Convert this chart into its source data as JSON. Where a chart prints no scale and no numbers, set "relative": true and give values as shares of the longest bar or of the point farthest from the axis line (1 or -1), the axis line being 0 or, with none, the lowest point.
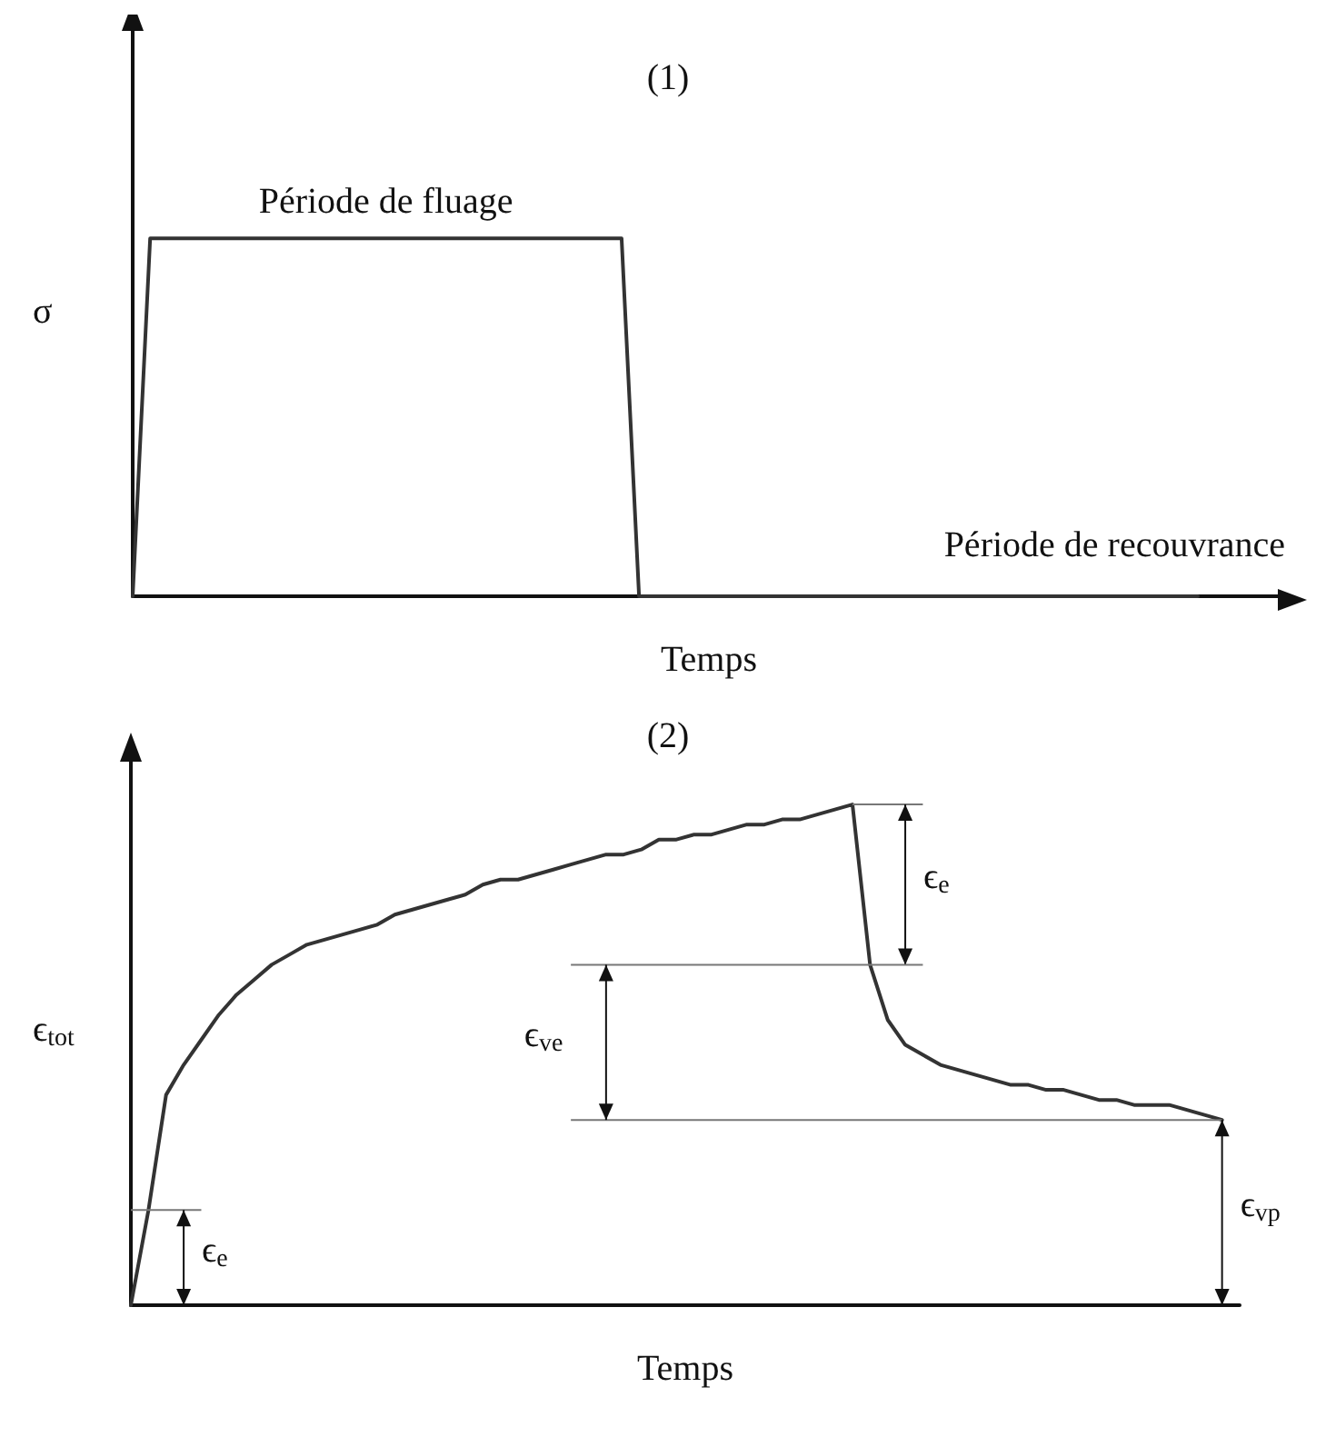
{
  "chart_data": [
    {
      "type": "line",
      "title": "(1)",
      "xlabel": "Temps",
      "ylabel": "σ",
      "relative": true,
      "marker": "none",
      "line_style": "solid",
      "annotations": [
        "Période de fluage",
        "Période de recouvrance"
      ],
      "categories": [
        null,
        null,
        null,
        null,
        null,
        null,
        null,
        null,
        null,
        null,
        null,
        null,
        null,
        null,
        null,
        null,
        null,
        null,
        null,
        null,
        null,
        null,
        null,
        null,
        null,
        null,
        null,
        null,
        null,
        null,
        null,
        null,
        null,
        null,
        null,
        null,
        null,
        null,
        null,
        null,
        null,
        null,
        null,
        null,
        null,
        null,
        null,
        null,
        null,
        null,
        null,
        null,
        null,
        null,
        null,
        null,
        null,
        null,
        null,
        null,
        null,
        null,
        null,
        null,
        null,
        null,
        null
      ],
      "series": [
        {
          "color": "#333333",
          "values": [
            0,
            1,
            1,
            1,
            1,
            1,
            1,
            1,
            1,
            1,
            1,
            1,
            1,
            1,
            1,
            1,
            1,
            1,
            1,
            1,
            1,
            1,
            1,
            1,
            1,
            1,
            1,
            1,
            1,
            0,
            0,
            0,
            0,
            0,
            0,
            0,
            0,
            0,
            0,
            0,
            0,
            0,
            0,
            0,
            0,
            0,
            0,
            0,
            0,
            0,
            0,
            0,
            0,
            0,
            0,
            0,
            0,
            0,
            0,
            0,
            0,
            0,
            null,
            null,
            null,
            null,
            null
          ]
        }
      ]
    },
    {
      "type": "line",
      "title": "(2)",
      "xlabel": "Temps",
      "ylabel": "ϵ$_{tot}$",
      "relative": true,
      "marker": "none",
      "line_style": "solid",
      "annotations": [
        "ϵ$_{e}$",
        "ϵ$_{ve}$",
        "ϵ$_{vp}$",
        "ϵ$_{e}$"
      ],
      "categories": [
        null,
        null,
        null,
        null,
        null,
        null,
        null,
        null,
        null,
        null,
        null,
        null,
        null,
        null,
        null,
        null,
        null,
        null,
        null,
        null,
        null,
        null,
        null,
        null,
        null,
        null,
        null,
        null,
        null,
        null,
        null,
        null,
        null,
        null,
        null,
        null,
        null,
        null,
        null,
        null,
        null,
        null,
        null,
        null,
        null,
        null,
        null,
        null,
        null,
        null,
        null,
        null,
        null,
        null,
        null,
        null,
        null,
        null,
        null,
        null,
        null,
        null,
        null,
        null
      ],
      "series": [
        {
          "color": "#333333",
          "values": [
            0,
            0.19,
            0.42,
            0.48,
            0.53,
            0.58,
            0.62,
            0.65,
            0.68,
            0.7,
            0.72,
            0.73,
            0.74,
            0.75,
            0.76,
            0.78,
            0.79,
            0.8,
            0.81,
            0.82,
            0.84,
            0.85,
            0.85,
            0.86,
            0.87,
            0.88,
            0.89,
            0.9,
            0.9,
            0.91,
            0.93,
            0.93,
            0.94,
            0.94,
            0.95,
            0.96,
            0.96,
            0.97,
            0.97,
            0.98,
            0.99,
            1,
            0.68,
            0.57,
            0.52,
            0.5,
            0.48,
            0.47,
            0.46,
            0.45,
            0.44,
            0.44,
            0.43,
            0.43,
            0.42,
            0.41,
            0.41,
            0.4,
            0.4,
            0.4,
            0.39,
            0.38,
            0.37,
            null
          ]
        }
      ]
    }
  ]
}
